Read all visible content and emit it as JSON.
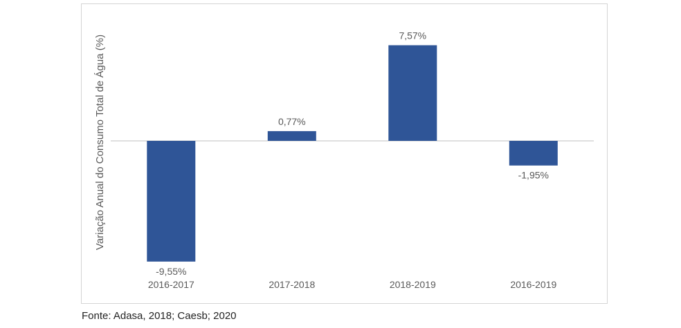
{
  "chart_data": {
    "type": "bar",
    "title": "",
    "xlabel": "",
    "ylabel": "Variação Anual do Consumo Total de Água (%)",
    "categories": [
      "2016-2017",
      "2017-2018",
      "2018-2019",
      "2016-2019"
    ],
    "values": [
      -9.55,
      0.77,
      7.57,
      -1.95
    ],
    "value_labels": [
      "-9,55%",
      "0,77%",
      "7,57%",
      "-1,95%"
    ],
    "ylim": [
      -9.55,
      7.57
    ],
    "grid": false,
    "legend": "none",
    "bar_color": "#2f5597",
    "axis_color": "#bfbfbf"
  },
  "source": "Fonte: Adasa, 2018; Caesb; 2020"
}
